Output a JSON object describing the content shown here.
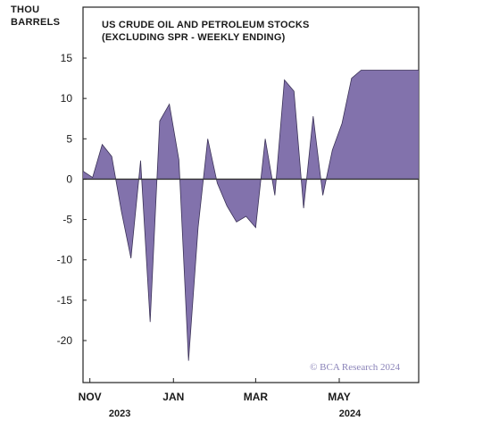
{
  "chart_data": {
    "type": "area",
    "title_lines": [
      "US CRUDE OIL AND PETROLEUM STOCKS",
      "(EXCLUDING SPR - WEEKLY ENDING)"
    ],
    "ylabel_lines": [
      "THOU",
      "BARRELS"
    ],
    "credit": "© BCA Research 2024",
    "ylim": [
      -25,
      17
    ],
    "yticks": [
      15,
      10,
      5,
      0,
      -5,
      -10,
      -15,
      -20
    ],
    "ytick_labels": [
      "15",
      "10",
      "5",
      "0",
      "-5",
      "-10",
      "-15",
      "-20"
    ],
    "x_start": "2023-10-27",
    "x_end": "2024-06-28",
    "xticks": [
      {
        "date": "2023-11-01",
        "label": "NOV"
      },
      {
        "date": "2024-01-01",
        "label": "JAN"
      },
      {
        "date": "2024-03-01",
        "label": "MAR"
      },
      {
        "date": "2024-05-01",
        "label": "MAY"
      }
    ],
    "year_labels": [
      {
        "date": "2023-11-15",
        "label": "2023"
      },
      {
        "date": "2024-05-01",
        "label": "2024"
      }
    ],
    "grid": false,
    "fill_color": "#7b6aa8",
    "line_color": "#3b3257",
    "zero_line_color": "#333333",
    "series": [
      {
        "x": [
          "2023-10-27",
          "2023-11-03",
          "2023-11-10",
          "2023-11-17",
          "2023-11-24",
          "2023-12-01",
          "2023-12-08",
          "2023-12-15",
          "2023-12-22",
          "2023-12-29",
          "2024-01-05",
          "2024-01-12",
          "2024-01-19",
          "2024-01-26",
          "2024-02-02",
          "2024-02-09",
          "2024-02-16",
          "2024-02-23",
          "2024-03-01",
          "2024-03-08",
          "2024-03-15",
          "2024-03-22",
          "2024-03-29",
          "2024-04-05",
          "2024-04-12",
          "2024-04-19",
          "2024-04-26",
          "2024-05-03",
          "2024-05-10",
          "2024-05-17",
          "2024-05-24",
          "2024-05-31",
          "2024-06-07",
          "2024-06-14",
          "2024-06-21",
          "2024-06-28"
        ],
        "values": [
          1.0,
          0.2,
          4.3,
          2.8,
          -4.0,
          -9.8,
          2.3,
          -17.7,
          7.2,
          9.3,
          2.4,
          -22.5,
          -6.0,
          5.0,
          -0.5,
          -3.3,
          -5.3,
          -4.6,
          -6.0,
          5.0,
          -2.0,
          12.3,
          10.9,
          -3.6,
          7.8,
          -2.0,
          3.6,
          6.9,
          12.5,
          13.5,
          13.5,
          13.5,
          13.5,
          13.5,
          13.5,
          13.5
        ]
      }
    ]
  }
}
